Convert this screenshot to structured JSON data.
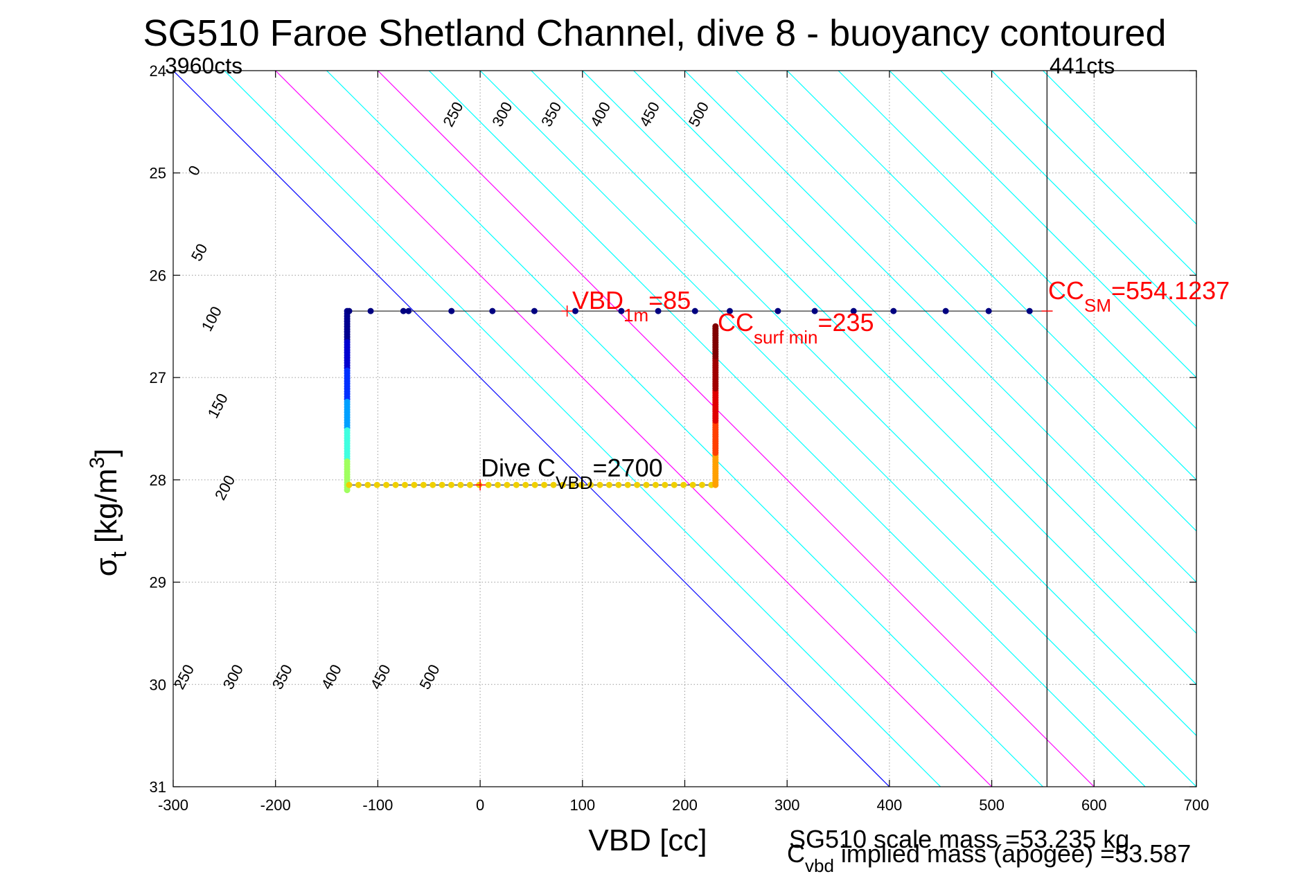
{
  "chart_data": {
    "type": "scatter",
    "title": "SG510 Faroe Shetland Channel, dive 8 - buoyancy contoured",
    "xlabel": "VBD [cc]",
    "ylabel_main": "σ",
    "ylabel_sub": "t",
    "ylabel_rest": " [kg/m",
    "ylabel_sup": "3",
    "ylabel_close": "]",
    "xlim": [
      -300,
      700
    ],
    "ylim": [
      24,
      31
    ],
    "y_reversed": true,
    "grid": true,
    "x_ticks": [
      -300,
      -200,
      -100,
      0,
      100,
      200,
      300,
      400,
      500,
      600,
      700
    ],
    "y_ticks": [
      24,
      25,
      26,
      27,
      28,
      29,
      30,
      31
    ],
    "x_tick_labels": [
      "-300",
      "-200",
      "-100",
      "0",
      "100",
      "200",
      "300",
      "400",
      "500",
      "600",
      "700"
    ],
    "y_tick_labels": [
      "24",
      "25",
      "26",
      "27",
      "28",
      "29",
      "30",
      "31"
    ],
    "counts_left": "3960cts",
    "counts_right": "441cts",
    "vertical_line_x": 554,
    "contour_lines": {
      "levels": [
        0,
        50,
        100,
        150,
        200,
        250,
        300,
        350,
        400,
        450,
        500
      ],
      "labels": [
        "0",
        "50",
        "100",
        "150",
        "200",
        "250",
        "300",
        "350",
        "400",
        "450",
        "500"
      ],
      "colors": {
        "0": "#0000ff",
        "100": "#ff00ff",
        "200": "#ff00ff",
        "other": "#00ffff"
      },
      "slope_cc_per_sigma": 100,
      "x_at_sigma_24": [
        -300,
        -250,
        -200,
        -150,
        -100,
        -50,
        0,
        50,
        100,
        150,
        200,
        250,
        300,
        350,
        400,
        450,
        500,
        550
      ]
    },
    "top_contour_labels": [
      "250",
      "300",
      "350",
      "400",
      "450",
      "500"
    ],
    "bottom_contour_labels": [
      "250",
      "300",
      "350",
      "400",
      "450",
      "500"
    ],
    "series": [
      {
        "segment": "surface",
        "color": "#000080",
        "points": [
          [
            -128,
            26.35
          ],
          [
            -107,
            26.35
          ],
          [
            -75,
            26.35
          ],
          [
            -70,
            26.35
          ],
          [
            -28,
            26.35
          ],
          [
            12,
            26.35
          ],
          [
            53,
            26.35
          ],
          [
            93,
            26.35
          ],
          [
            138,
            26.35
          ],
          [
            174,
            26.35
          ],
          [
            210,
            26.35
          ],
          [
            244,
            26.35
          ],
          [
            291,
            26.35
          ],
          [
            327,
            26.35
          ],
          [
            365,
            26.35
          ],
          [
            404,
            26.35
          ],
          [
            455,
            26.35
          ],
          [
            497,
            26.35
          ],
          [
            537,
            26.35
          ]
        ]
      },
      {
        "segment": "descent",
        "x": -130,
        "sigma_start": 26.35,
        "sigma_end": 28.1,
        "colors": [
          "#000090",
          "#0000d0",
          "#0030ff",
          "#00a0ff",
          "#40ffe0",
          "#a0ff60"
        ]
      },
      {
        "segment": "apogee_pump",
        "sigma": 28.05,
        "x_start": -128,
        "x_end": 226,
        "color": "#f0d000"
      },
      {
        "segment": "ascent",
        "x": 230,
        "sigma_start": 28.05,
        "sigma_end": 26.5,
        "colors": [
          "#ffa000",
          "#ff4000",
          "#e00000",
          "#a00000",
          "#800000"
        ]
      }
    ],
    "annotations": {
      "vbd1m_main": "VBD",
      "vbd1m_sub": "1m",
      "vbd1m_value": "=85",
      "vbd1m_x": 85,
      "vbd1m_sigma": 26.35,
      "ccsurf_main": "CC",
      "ccsurf_sub": "surf min",
      "ccsurf_value": "=235",
      "ccsm_main": "CC",
      "ccsm_sub": "SM",
      "ccsm_value": "=554.1237",
      "ccsm_x": 554.1237,
      "dive_main": "Dive C",
      "dive_sub": "VBD",
      "dive_value": "=2700",
      "dive_marker_x": 0,
      "dive_marker_sigma": 28.05,
      "annotation_color": "#ff0000"
    },
    "footer": {
      "scale_mass": "SG510 scale mass =53.235 kg",
      "implied_main": "C",
      "implied_sub": "vbd",
      "implied_rest": " implied mass (apogee) =53.587"
    }
  }
}
